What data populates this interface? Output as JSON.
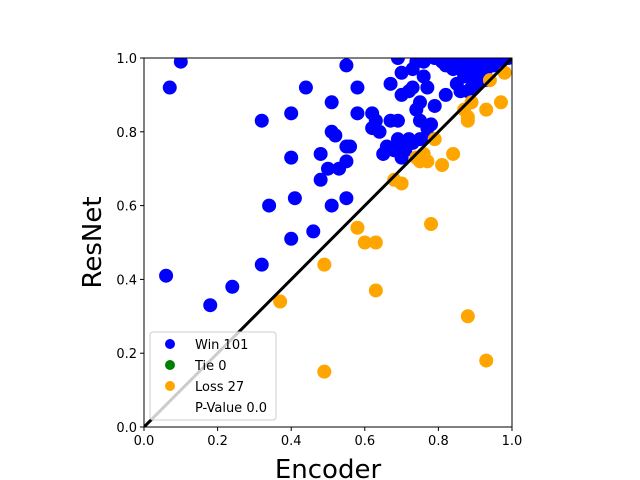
{
  "chart_data": {
    "type": "scatter",
    "xlabel": "Encoder",
    "ylabel": "ResNet",
    "xlim": [
      0.0,
      1.0
    ],
    "ylim": [
      0.0,
      1.0
    ],
    "xticks": [
      "0.0",
      "0.2",
      "0.4",
      "0.6",
      "0.8",
      "1.0"
    ],
    "yticks": [
      "0.0",
      "0.2",
      "0.4",
      "0.6",
      "0.8",
      "1.0"
    ],
    "grid": false,
    "legend_position": "lower-left",
    "diagonal": {
      "x": [
        0,
        1
      ],
      "y": [
        0,
        1
      ],
      "color": "#000000"
    },
    "series": [
      {
        "name": "Win 101",
        "color": "#0000ff",
        "points": [
          [
            0.1,
            0.99
          ],
          [
            0.07,
            0.92
          ],
          [
            0.06,
            0.41
          ],
          [
            0.18,
            0.33
          ],
          [
            0.24,
            0.38
          ],
          [
            0.32,
            0.83
          ],
          [
            0.32,
            0.44
          ],
          [
            0.34,
            0.6
          ],
          [
            0.4,
            0.85
          ],
          [
            0.4,
            0.73
          ],
          [
            0.4,
            0.51
          ],
          [
            0.41,
            0.62
          ],
          [
            0.44,
            0.92
          ],
          [
            0.46,
            0.53
          ],
          [
            0.48,
            0.74
          ],
          [
            0.48,
            0.67
          ],
          [
            0.5,
            0.7
          ],
          [
            0.51,
            0.8
          ],
          [
            0.51,
            0.88
          ],
          [
            0.51,
            0.6
          ],
          [
            0.52,
            0.79
          ],
          [
            0.53,
            0.7
          ],
          [
            0.55,
            0.98
          ],
          [
            0.55,
            0.76
          ],
          [
            0.55,
            0.72
          ],
          [
            0.55,
            0.62
          ],
          [
            0.56,
            0.76
          ],
          [
            0.58,
            0.92
          ],
          [
            0.58,
            0.85
          ],
          [
            0.62,
            0.85
          ],
          [
            0.62,
            0.81
          ],
          [
            0.63,
            0.83
          ],
          [
            0.64,
            0.8
          ],
          [
            0.65,
            0.74
          ],
          [
            0.66,
            0.76
          ],
          [
            0.67,
            0.93
          ],
          [
            0.67,
            0.83
          ],
          [
            0.68,
            0.75
          ],
          [
            0.69,
            0.78
          ],
          [
            0.69,
            1.0
          ],
          [
            0.69,
            0.83
          ],
          [
            0.7,
            0.96
          ],
          [
            0.7,
            0.9
          ],
          [
            0.7,
            0.73
          ],
          [
            0.71,
            0.75
          ],
          [
            0.71,
            0.76
          ],
          [
            0.72,
            0.78
          ],
          [
            0.72,
            0.91
          ],
          [
            0.73,
            0.97
          ],
          [
            0.73,
            0.92
          ],
          [
            0.73,
            0.77
          ],
          [
            0.74,
            0.99
          ],
          [
            0.74,
            0.86
          ],
          [
            0.75,
            0.83
          ],
          [
            0.75,
            0.88
          ],
          [
            0.75,
            0.78
          ],
          [
            0.76,
            0.99
          ],
          [
            0.76,
            0.95
          ],
          [
            0.77,
            0.92
          ],
          [
            0.77,
            0.81
          ],
          [
            0.77,
            0.79
          ],
          [
            0.78,
            0.82
          ],
          [
            0.79,
            1.0
          ],
          [
            0.79,
            0.87
          ],
          [
            0.8,
            1.0
          ],
          [
            0.81,
            0.99
          ],
          [
            0.82,
            0.98
          ],
          [
            0.82,
            0.9
          ],
          [
            0.83,
            1.0
          ],
          [
            0.84,
            0.98
          ],
          [
            0.84,
            0.97
          ],
          [
            0.85,
            1.0
          ],
          [
            0.85,
            0.93
          ],
          [
            0.86,
            0.97
          ],
          [
            0.86,
            0.91
          ],
          [
            0.87,
            0.96
          ],
          [
            0.87,
            0.95
          ],
          [
            0.88,
            1.0
          ],
          [
            0.88,
            0.95
          ],
          [
            0.88,
            0.91
          ],
          [
            0.89,
            0.99
          ],
          [
            0.89,
            0.96
          ],
          [
            0.89,
            0.92
          ],
          [
            0.9,
            1.0
          ],
          [
            0.9,
            0.97
          ],
          [
            0.9,
            0.94
          ],
          [
            0.91,
            0.98
          ],
          [
            0.91,
            0.95
          ],
          [
            0.92,
            1.0
          ],
          [
            0.92,
            0.96
          ],
          [
            0.93,
            1.0
          ],
          [
            0.93,
            0.97
          ],
          [
            0.93,
            0.94
          ],
          [
            0.94,
            0.99
          ],
          [
            0.95,
            1.0
          ],
          [
            0.95,
            0.98
          ],
          [
            0.96,
            1.0
          ],
          [
            0.97,
            0.99
          ],
          [
            0.98,
            1.0
          ],
          [
            0.99,
            1.0
          ],
          [
            0.9,
            0.93
          ]
        ]
      },
      {
        "name": "Tie 0",
        "color": "#008000",
        "points": []
      },
      {
        "name": "Loss 27",
        "color": "#ffa500",
        "points": [
          [
            0.37,
            0.34
          ],
          [
            0.49,
            0.44
          ],
          [
            0.49,
            0.15
          ],
          [
            0.58,
            0.54
          ],
          [
            0.6,
            0.5
          ],
          [
            0.63,
            0.5
          ],
          [
            0.63,
            0.37
          ],
          [
            0.68,
            0.67
          ],
          [
            0.7,
            0.66
          ],
          [
            0.74,
            0.73
          ],
          [
            0.75,
            0.72
          ],
          [
            0.76,
            0.74
          ],
          [
            0.77,
            0.72
          ],
          [
            0.78,
            0.55
          ],
          [
            0.79,
            0.78
          ],
          [
            0.81,
            0.71
          ],
          [
            0.84,
            0.74
          ],
          [
            0.87,
            0.86
          ],
          [
            0.88,
            0.3
          ],
          [
            0.88,
            0.84
          ],
          [
            0.88,
            0.83
          ],
          [
            0.89,
            0.88
          ],
          [
            0.93,
            0.18
          ],
          [
            0.93,
            0.86
          ],
          [
            0.94,
            0.94
          ],
          [
            0.97,
            0.88
          ],
          [
            0.98,
            0.96
          ]
        ]
      }
    ],
    "legend_extra": "P-Value 0.0"
  }
}
